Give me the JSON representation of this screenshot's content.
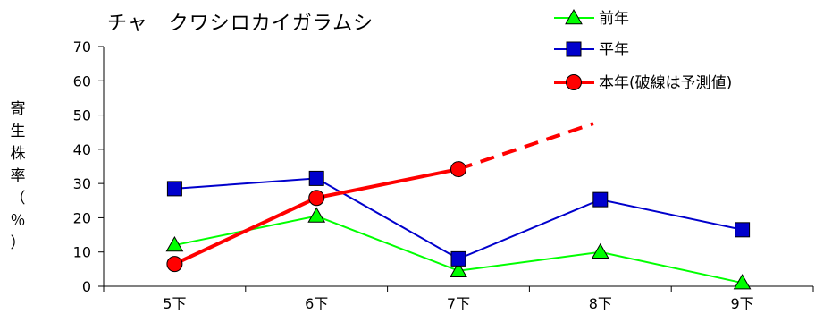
{
  "chart_data": {
    "type": "line",
    "title": "チャ　クワシロカイガラムシ",
    "ylabel_chars": [
      "寄",
      "生",
      "株",
      "率",
      "（",
      "％",
      "）"
    ],
    "categories": [
      "5下",
      "6下",
      "7下",
      "8下",
      "9下"
    ],
    "ylim": [
      0,
      70
    ],
    "yticks": [
      0,
      10,
      20,
      30,
      40,
      50,
      60,
      70
    ],
    "grid": false,
    "legend_position": "top-right",
    "series": [
      {
        "name": "前年",
        "values": [
          12,
          20.5,
          4.5,
          10,
          1
        ],
        "color": "#00ff00",
        "marker": "triangle",
        "line_width": 2
      },
      {
        "name": "平年",
        "values": [
          28.5,
          31.5,
          8,
          25.3,
          16.5
        ],
        "color": "#0000cc",
        "marker": "square",
        "line_width": 2
      },
      {
        "name": "本年(破線は予測値)",
        "values": [
          6.5,
          25.8,
          34.2,
          null,
          null
        ],
        "color": "#ff0000",
        "marker": "circle",
        "line_width": 4,
        "predicted": {
          "from_x": 2,
          "from_y": 34.2,
          "to_x": 2.95,
          "to_y": 47.5
        }
      }
    ]
  }
}
